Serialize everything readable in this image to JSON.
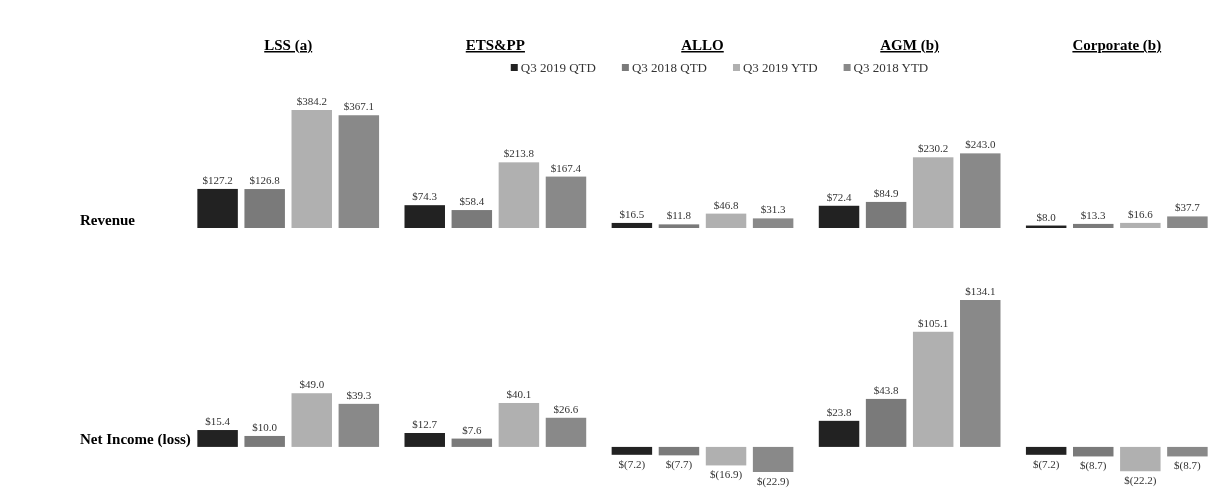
{
  "chart_data": [
    {
      "type": "bar",
      "ylabel": "Revenue",
      "categories": [
        "LSS (a)",
        "ETS&PP",
        "ALLO",
        "AGM (b)",
        "Corporate (b)"
      ],
      "legend": "top",
      "series": [
        {
          "name": "Q3 2019 QTD",
          "color": "#222222",
          "values": [
            127.2,
            74.3,
            16.5,
            72.4,
            8.0
          ],
          "value_labels": [
            "$127.2",
            "$74.3",
            "$16.5",
            "$72.4",
            "$8.0"
          ]
        },
        {
          "name": "Q3 2018 QTD",
          "color": "#7a7a7a",
          "values": [
            126.8,
            58.4,
            11.8,
            84.9,
            13.3
          ],
          "value_labels": [
            "$126.8",
            "$58.4",
            "$11.8",
            "$84.9",
            "$13.3"
          ]
        },
        {
          "name": "Q3 2019 YTD",
          "color": "#b0b0b0",
          "values": [
            384.2,
            213.8,
            46.8,
            230.2,
            16.6
          ],
          "value_labels": [
            "$384.2",
            "$213.8",
            "$46.8",
            "$230.2",
            "$16.6"
          ]
        },
        {
          "name": "Q3 2018 YTD",
          "color": "#898989",
          "values": [
            367.1,
            167.4,
            31.3,
            243.0,
            37.7
          ],
          "value_labels": [
            "$367.1",
            "$167.4",
            "$31.3",
            "$243.0",
            "$37.7"
          ]
        }
      ]
    },
    {
      "type": "bar",
      "ylabel": "Net Income (loss)",
      "categories": [
        null,
        null,
        null,
        null,
        null
      ],
      "series": [
        {
          "color": "#222222",
          "values": [
            15.4,
            12.7,
            -7.2,
            23.8,
            -7.2
          ],
          "value_labels": [
            "$15.4",
            "$12.7",
            "$(7.2)",
            "$23.8",
            "$(7.2)"
          ]
        },
        {
          "color": "#7a7a7a",
          "values": [
            10.0,
            7.6,
            -7.7,
            43.8,
            -8.7
          ],
          "value_labels": [
            "$10.0",
            "$7.6",
            "$(7.7)",
            "$43.8",
            "$(8.7)"
          ]
        },
        {
          "color": "#b0b0b0",
          "values": [
            49.0,
            40.1,
            -16.9,
            105.1,
            -22.2
          ],
          "value_labels": [
            "$49.0",
            "$40.1",
            "$(16.9)",
            "$105.1",
            "$(22.2)"
          ]
        },
        {
          "color": "#898989",
          "values": [
            39.3,
            26.6,
            -22.9,
            134.1,
            -8.7
          ],
          "value_labels": [
            "$39.3",
            "$26.6",
            "$(22.9)",
            "$134.1",
            "$(8.7)"
          ]
        }
      ]
    }
  ]
}
